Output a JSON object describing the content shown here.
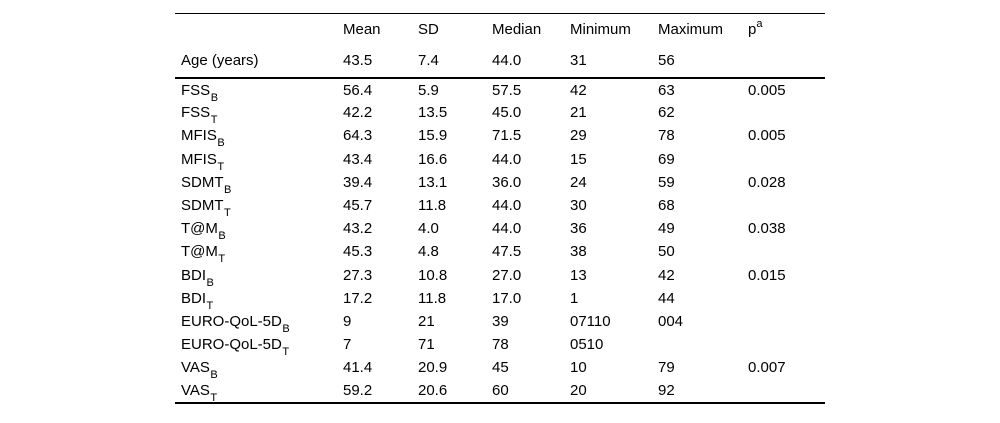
{
  "colors": {
    "background": "#ffffff",
    "text": "#000000",
    "rule": "#000000"
  },
  "table": {
    "headers": {
      "label": "",
      "mean": "Mean",
      "sd": "SD",
      "median": "Median",
      "minimum": "Minimum",
      "maximum": "Maximum",
      "p_base": "p",
      "p_sup": "a"
    },
    "age_row": {
      "label": "Age (years)",
      "values": [
        "43.5",
        "7.4",
        "44.0",
        "31",
        "56",
        ""
      ]
    },
    "rows": [
      {
        "label_base": "FSS",
        "label_sub": "B",
        "values": [
          "56.4",
          "5.9",
          "57.5",
          "42",
          "63",
          "0.005"
        ]
      },
      {
        "label_base": "FSS",
        "label_sub": "T",
        "values": [
          "42.2",
          "13.5",
          "45.0",
          "21",
          "62",
          ""
        ]
      },
      {
        "label_base": "MFIS",
        "label_sub": "B",
        "values": [
          "64.3",
          "15.9",
          "71.5",
          "29",
          "78",
          "0.005"
        ]
      },
      {
        "label_base": "MFIS",
        "label_sub": "T",
        "values": [
          "43.4",
          "16.6",
          "44.0",
          "15",
          "69",
          ""
        ]
      },
      {
        "label_base": "SDMT",
        "label_sub": "B",
        "values": [
          "39.4",
          "13.1",
          "36.0",
          "24",
          "59",
          "0.028"
        ]
      },
      {
        "label_base": "SDMT",
        "label_sub": "T",
        "values": [
          "45.7",
          "11.8",
          "44.0",
          "30",
          "68",
          ""
        ]
      },
      {
        "label_base": "T@M",
        "label_sub": "B",
        "values": [
          "43.2",
          "4.0",
          "44.0",
          "36",
          "49",
          "0.038"
        ]
      },
      {
        "label_base": "T@M",
        "label_sub": "T",
        "values": [
          "45.3",
          "4.8",
          "47.5",
          "38",
          "50",
          ""
        ]
      },
      {
        "label_base": "BDI",
        "label_sub": "B",
        "values": [
          "27.3",
          "10.8",
          "27.0",
          "13",
          "42",
          "0.015"
        ]
      },
      {
        "label_base": "BDI",
        "label_sub": "T",
        "values": [
          "17.2",
          "11.8",
          "17.0",
          "1",
          "44",
          ""
        ]
      },
      {
        "label_base": "EURO-QoL-5D",
        "label_sub": "B",
        "values": [
          "9",
          "21",
          "39",
          "07110",
          "004",
          ""
        ]
      },
      {
        "label_base": "EURO-QoL-5D",
        "label_sub": "T",
        "values": [
          "7",
          "71",
          "78",
          "0510",
          "",
          ""
        ]
      },
      {
        "label_base": "VAS",
        "label_sub": "B",
        "values": [
          "41.4",
          "20.9",
          "45",
          "10",
          "79",
          "0.007"
        ]
      },
      {
        "label_base": "VAS",
        "label_sub": "T",
        "values": [
          "59.2",
          "20.6",
          "60",
          "20",
          "92",
          ""
        ]
      }
    ]
  }
}
